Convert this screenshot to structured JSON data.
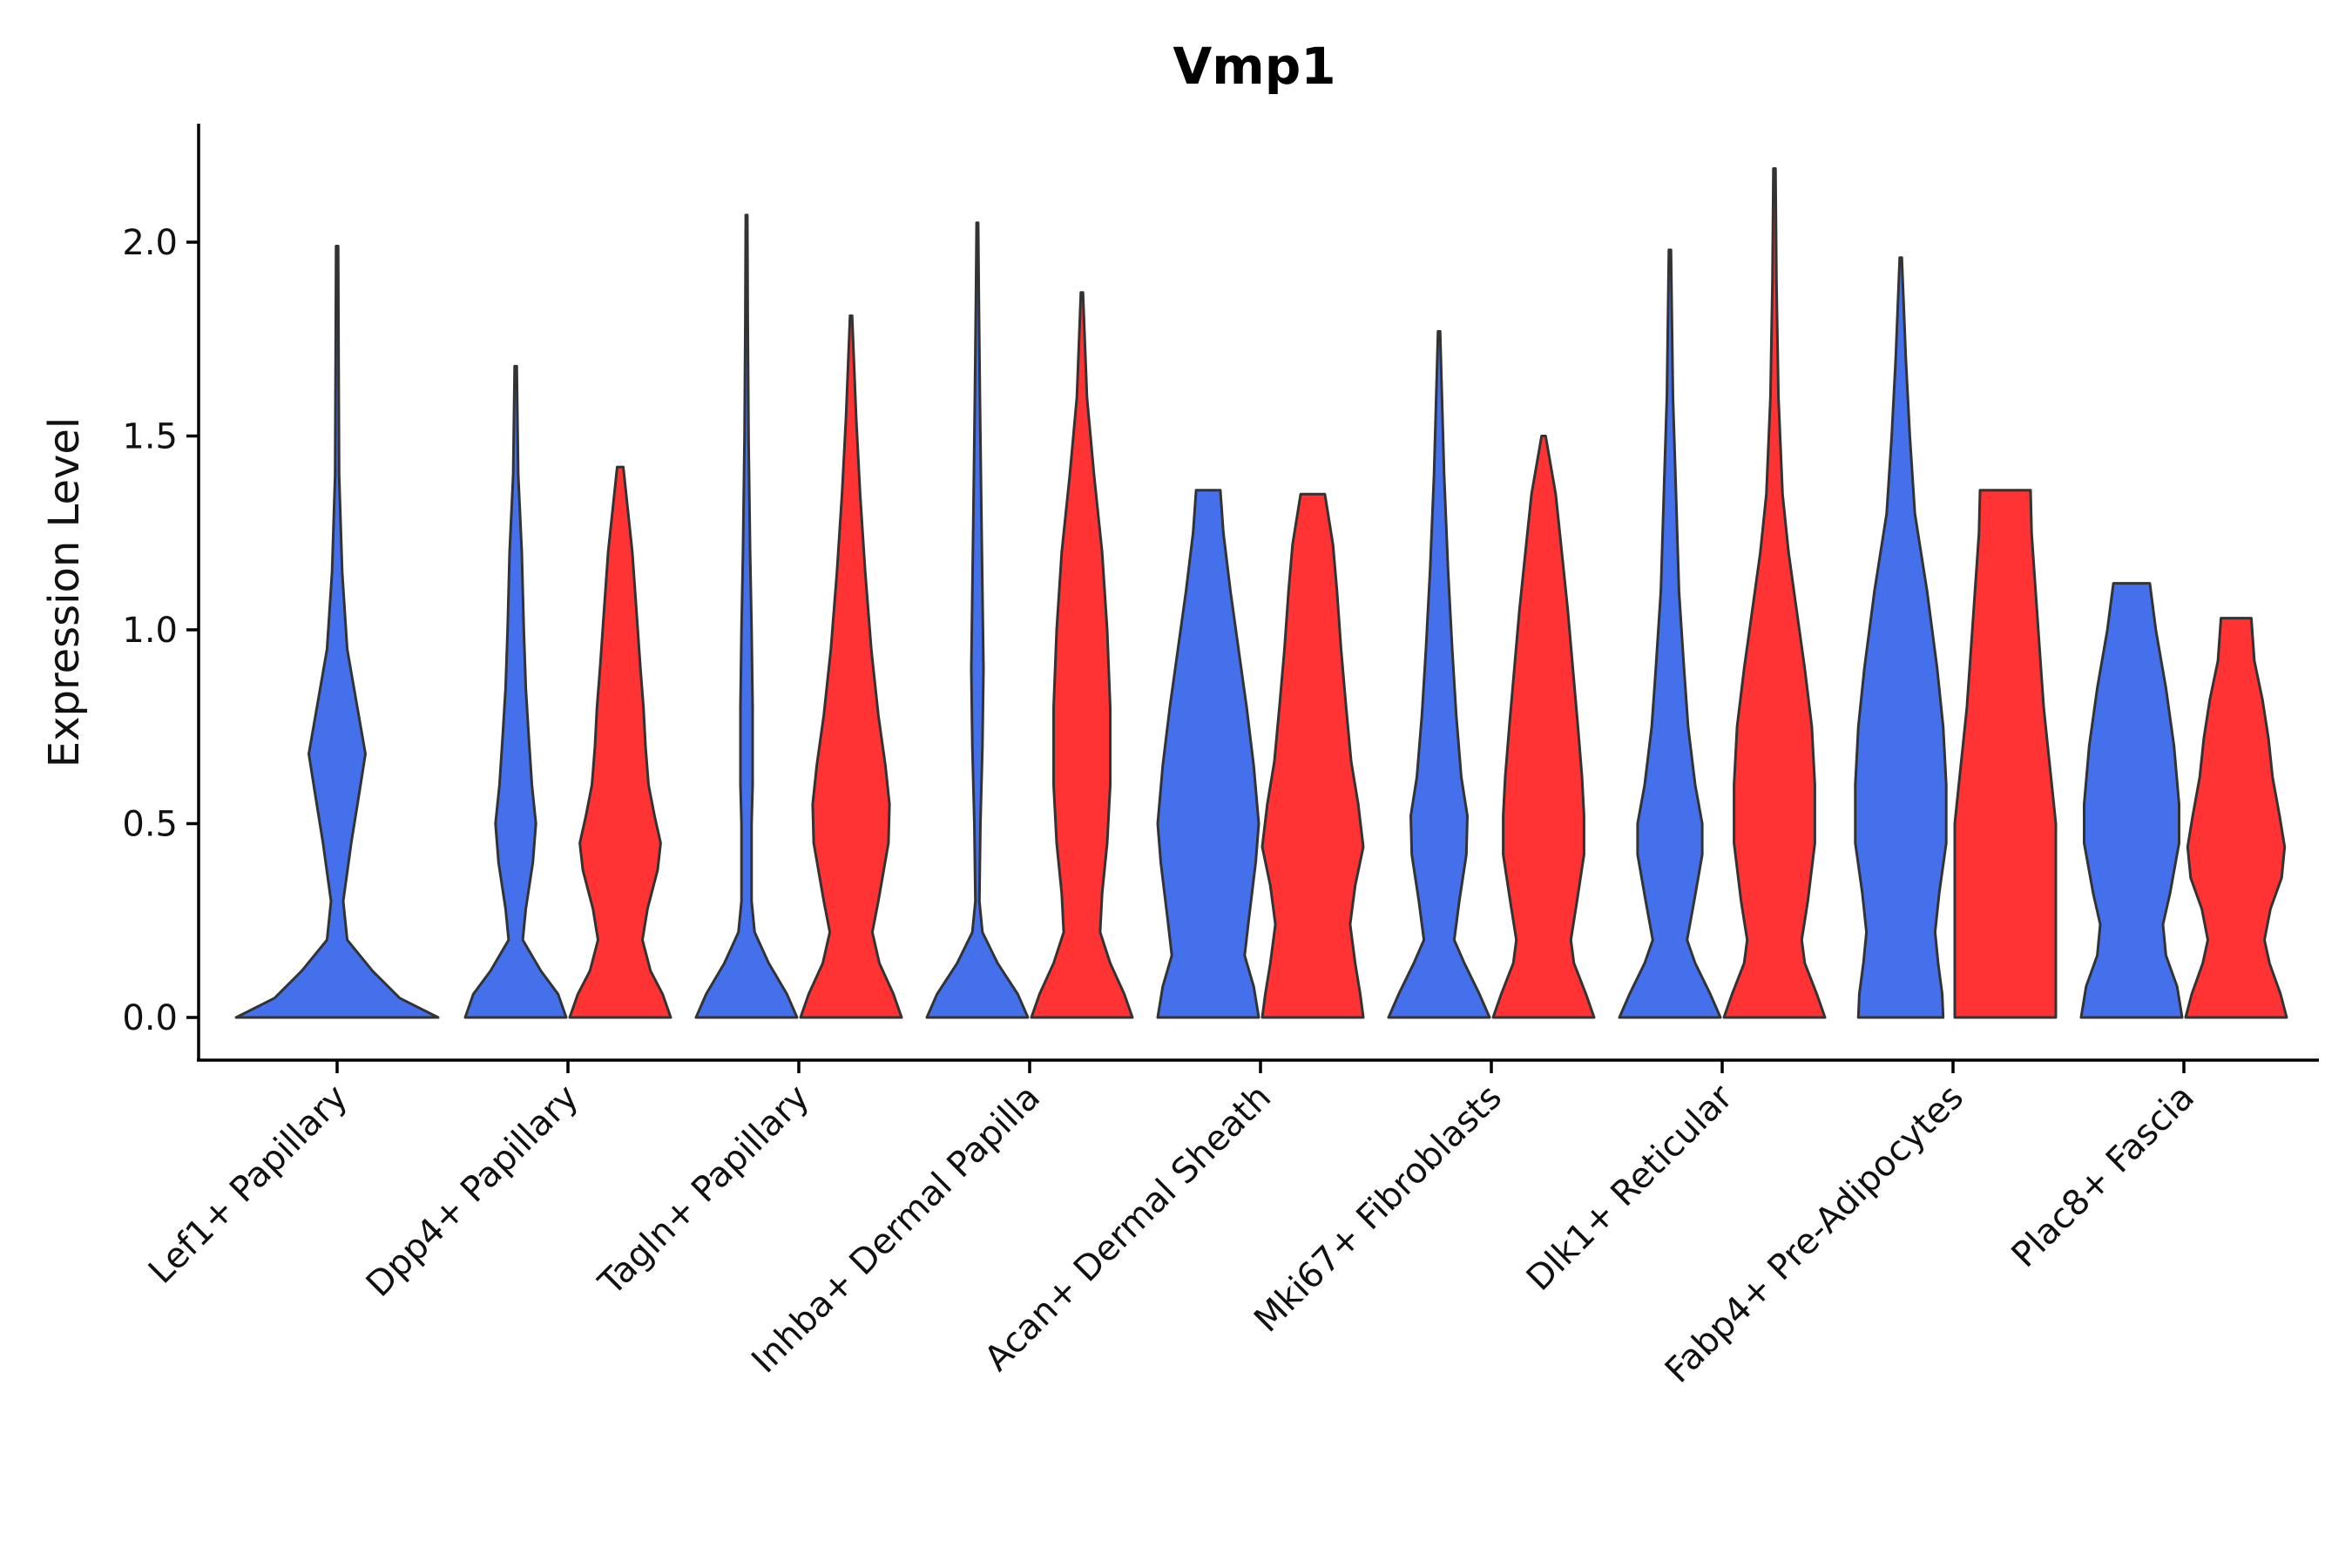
{
  "chart_data": {
    "type": "violin",
    "title": "Vmp1",
    "xlabel": "",
    "ylabel": "Expression Level",
    "ylim": [
      -0.11,
      2.3
    ],
    "yticks": [
      0.0,
      0.5,
      1.0,
      1.5,
      2.0
    ],
    "ytick_labels": [
      "0.0",
      "0.5",
      "1.0",
      "1.5",
      "2.0"
    ],
    "grid": false,
    "legend": "none",
    "categories": [
      "Lef1+ Papillary",
      "Dpp4+ Papillary",
      "Tagln+ Papillary",
      "Inhba+ Dermal Papilla",
      "Acan+ Dermal Sheath",
      "Mki67+ Fibroblasts",
      "Dlk1+ Reticular",
      "Fabp4+ Pre-Adipocytes",
      "Plac8+ Fascia"
    ],
    "series": [
      {
        "name": "group-1",
        "color": "#4570eb",
        "violins": [
          {
            "max": 1.99,
            "profile": [
              [
                0,
                1.0
              ],
              [
                0.05,
                0.62
              ],
              [
                0.12,
                0.35
              ],
              [
                0.2,
                0.1
              ],
              [
                0.3,
                0.06
              ],
              [
                0.45,
                0.14
              ],
              [
                0.58,
                0.22
              ],
              [
                0.68,
                0.28
              ],
              [
                0.8,
                0.2
              ],
              [
                0.95,
                0.1
              ],
              [
                1.15,
                0.05
              ],
              [
                1.4,
                0.02
              ],
              [
                1.7,
                0.015
              ],
              [
                1.99,
                0.01
              ]
            ]
          },
          {
            "max": 1.68,
            "profile": [
              [
                0,
                0.5
              ],
              [
                0.06,
                0.42
              ],
              [
                0.12,
                0.25
              ],
              [
                0.2,
                0.07
              ],
              [
                0.28,
                0.1
              ],
              [
                0.4,
                0.17
              ],
              [
                0.5,
                0.2
              ],
              [
                0.6,
                0.16
              ],
              [
                0.72,
                0.13
              ],
              [
                0.85,
                0.1
              ],
              [
                1.0,
                0.08
              ],
              [
                1.2,
                0.06
              ],
              [
                1.4,
                0.025
              ],
              [
                1.68,
                0.01
              ]
            ]
          },
          {
            "max": 2.07,
            "profile": [
              [
                0,
                0.5
              ],
              [
                0.06,
                0.4
              ],
              [
                0.14,
                0.22
              ],
              [
                0.22,
                0.08
              ],
              [
                0.3,
                0.05
              ],
              [
                0.5,
                0.05
              ],
              [
                0.6,
                0.06
              ],
              [
                0.8,
                0.06
              ],
              [
                1.0,
                0.05
              ],
              [
                1.2,
                0.035
              ],
              [
                1.5,
                0.02
              ],
              [
                1.8,
                0.012
              ],
              [
                2.07,
                0.008
              ]
            ]
          },
          {
            "max": 2.05,
            "profile": [
              [
                0,
                0.5
              ],
              [
                0.06,
                0.4
              ],
              [
                0.14,
                0.2
              ],
              [
                0.22,
                0.05
              ],
              [
                0.3,
                0.02
              ],
              [
                0.5,
                0.03
              ],
              [
                0.7,
                0.05
              ],
              [
                0.9,
                0.06
              ],
              [
                1.1,
                0.05
              ],
              [
                1.3,
                0.04
              ],
              [
                1.6,
                0.025
              ],
              [
                1.85,
                0.015
              ],
              [
                2.05,
                0.008
              ]
            ]
          },
          {
            "max": 1.36,
            "profile": [
              [
                0,
                0.5
              ],
              [
                0.08,
                0.45
              ],
              [
                0.16,
                0.36
              ],
              [
                0.25,
                0.4
              ],
              [
                0.4,
                0.47
              ],
              [
                0.5,
                0.5
              ],
              [
                0.65,
                0.45
              ],
              [
                0.8,
                0.38
              ],
              [
                0.95,
                0.3
              ],
              [
                1.1,
                0.22
              ],
              [
                1.25,
                0.15
              ],
              [
                1.36,
                0.12
              ]
            ]
          },
          {
            "max": 1.77,
            "profile": [
              [
                0,
                0.5
              ],
              [
                0.06,
                0.4
              ],
              [
                0.14,
                0.25
              ],
              [
                0.2,
                0.15
              ],
              [
                0.3,
                0.2
              ],
              [
                0.42,
                0.27
              ],
              [
                0.52,
                0.28
              ],
              [
                0.62,
                0.22
              ],
              [
                0.78,
                0.17
              ],
              [
                0.95,
                0.13
              ],
              [
                1.15,
                0.09
              ],
              [
                1.4,
                0.05
              ],
              [
                1.77,
                0.01
              ]
            ]
          },
          {
            "max": 1.98,
            "profile": [
              [
                0,
                0.5
              ],
              [
                0.06,
                0.4
              ],
              [
                0.14,
                0.25
              ],
              [
                0.2,
                0.17
              ],
              [
                0.3,
                0.24
              ],
              [
                0.42,
                0.32
              ],
              [
                0.5,
                0.32
              ],
              [
                0.6,
                0.25
              ],
              [
                0.75,
                0.18
              ],
              [
                0.9,
                0.14
              ],
              [
                1.1,
                0.09
              ],
              [
                1.35,
                0.06
              ],
              [
                1.6,
                0.03
              ],
              [
                1.98,
                0.01
              ]
            ]
          },
          {
            "max": 1.96,
            "profile": [
              [
                0,
                0.42
              ],
              [
                0.06,
                0.41
              ],
              [
                0.14,
                0.37
              ],
              [
                0.22,
                0.34
              ],
              [
                0.32,
                0.38
              ],
              [
                0.45,
                0.45
              ],
              [
                0.6,
                0.45
              ],
              [
                0.75,
                0.42
              ],
              [
                0.9,
                0.36
              ],
              [
                1.1,
                0.26
              ],
              [
                1.3,
                0.14
              ],
              [
                1.5,
                0.09
              ],
              [
                1.7,
                0.05
              ],
              [
                1.96,
                0.01
              ]
            ]
          },
          {
            "max": 1.12,
            "profile": [
              [
                0,
                0.5
              ],
              [
                0.08,
                0.45
              ],
              [
                0.16,
                0.34
              ],
              [
                0.24,
                0.31
              ],
              [
                0.32,
                0.38
              ],
              [
                0.45,
                0.47
              ],
              [
                0.55,
                0.47
              ],
              [
                0.7,
                0.42
              ],
              [
                0.85,
                0.34
              ],
              [
                1.0,
                0.24
              ],
              [
                1.12,
                0.18
              ]
            ]
          }
        ]
      },
      {
        "name": "group-2",
        "color": "#ff3333",
        "violins": [
          null,
          {
            "max": 1.42,
            "profile": [
              [
                0,
                0.5
              ],
              [
                0.06,
                0.42
              ],
              [
                0.12,
                0.3
              ],
              [
                0.2,
                0.22
              ],
              [
                0.28,
                0.27
              ],
              [
                0.38,
                0.37
              ],
              [
                0.45,
                0.4
              ],
              [
                0.52,
                0.34
              ],
              [
                0.6,
                0.28
              ],
              [
                0.7,
                0.25
              ],
              [
                0.8,
                0.23
              ],
              [
                0.9,
                0.2
              ],
              [
                1.05,
                0.16
              ],
              [
                1.2,
                0.12
              ],
              [
                1.42,
                0.03
              ]
            ]
          },
          {
            "max": 1.81,
            "profile": [
              [
                0,
                0.5
              ],
              [
                0.06,
                0.42
              ],
              [
                0.14,
                0.28
              ],
              [
                0.22,
                0.21
              ],
              [
                0.3,
                0.27
              ],
              [
                0.45,
                0.37
              ],
              [
                0.55,
                0.38
              ],
              [
                0.65,
                0.34
              ],
              [
                0.78,
                0.27
              ],
              [
                0.95,
                0.2
              ],
              [
                1.15,
                0.14
              ],
              [
                1.35,
                0.09
              ],
              [
                1.55,
                0.05
              ],
              [
                1.81,
                0.01
              ]
            ]
          },
          {
            "max": 1.87,
            "profile": [
              [
                0,
                0.5
              ],
              [
                0.06,
                0.42
              ],
              [
                0.14,
                0.28
              ],
              [
                0.22,
                0.18
              ],
              [
                0.32,
                0.2
              ],
              [
                0.45,
                0.25
              ],
              [
                0.6,
                0.28
              ],
              [
                0.8,
                0.28
              ],
              [
                1.0,
                0.25
              ],
              [
                1.2,
                0.2
              ],
              [
                1.4,
                0.12
              ],
              [
                1.6,
                0.05
              ],
              [
                1.87,
                0.01
              ]
            ]
          },
          {
            "max": 1.35,
            "profile": [
              [
                0,
                0.5
              ],
              [
                0.06,
                0.47
              ],
              [
                0.14,
                0.42
              ],
              [
                0.24,
                0.37
              ],
              [
                0.34,
                0.42
              ],
              [
                0.44,
                0.5
              ],
              [
                0.55,
                0.45
              ],
              [
                0.66,
                0.38
              ],
              [
                0.8,
                0.33
              ],
              [
                0.95,
                0.28
              ],
              [
                1.1,
                0.24
              ],
              [
                1.22,
                0.2
              ],
              [
                1.35,
                0.12
              ]
            ]
          },
          {
            "max": 1.5,
            "profile": [
              [
                0,
                0.5
              ],
              [
                0.06,
                0.42
              ],
              [
                0.14,
                0.3
              ],
              [
                0.2,
                0.27
              ],
              [
                0.3,
                0.33
              ],
              [
                0.42,
                0.4
              ],
              [
                0.52,
                0.4
              ],
              [
                0.62,
                0.38
              ],
              [
                0.75,
                0.34
              ],
              [
                0.9,
                0.29
              ],
              [
                1.05,
                0.24
              ],
              [
                1.2,
                0.18
              ],
              [
                1.35,
                0.12
              ],
              [
                1.5,
                0.02
              ]
            ]
          },
          {
            "max": 2.19,
            "profile": [
              [
                0,
                0.5
              ],
              [
                0.06,
                0.42
              ],
              [
                0.14,
                0.3
              ],
              [
                0.2,
                0.27
              ],
              [
                0.3,
                0.33
              ],
              [
                0.45,
                0.4
              ],
              [
                0.6,
                0.4
              ],
              [
                0.75,
                0.37
              ],
              [
                0.9,
                0.3
              ],
              [
                1.05,
                0.22
              ],
              [
                1.2,
                0.14
              ],
              [
                1.35,
                0.08
              ],
              [
                1.6,
                0.04
              ],
              [
                1.9,
                0.02
              ],
              [
                2.19,
                0.01
              ]
            ]
          },
          {
            "max": 1.36,
            "profile": [
              [
                0,
                0.5
              ],
              [
                0.1,
                0.5
              ],
              [
                0.2,
                0.5
              ],
              [
                0.3,
                0.5
              ],
              [
                0.4,
                0.5
              ],
              [
                0.5,
                0.5
              ],
              [
                0.6,
                0.46
              ],
              [
                0.7,
                0.42
              ],
              [
                0.8,
                0.38
              ],
              [
                0.95,
                0.34
              ],
              [
                1.1,
                0.3
              ],
              [
                1.25,
                0.26
              ],
              [
                1.36,
                0.25
              ]
            ]
          },
          {
            "max": 1.03,
            "profile": [
              [
                0,
                0.5
              ],
              [
                0.06,
                0.44
              ],
              [
                0.14,
                0.33
              ],
              [
                0.2,
                0.28
              ],
              [
                0.28,
                0.34
              ],
              [
                0.36,
                0.45
              ],
              [
                0.44,
                0.48
              ],
              [
                0.52,
                0.43
              ],
              [
                0.62,
                0.36
              ],
              [
                0.72,
                0.32
              ],
              [
                0.82,
                0.26
              ],
              [
                0.92,
                0.18
              ],
              [
                1.03,
                0.15
              ]
            ]
          }
        ]
      }
    ]
  }
}
